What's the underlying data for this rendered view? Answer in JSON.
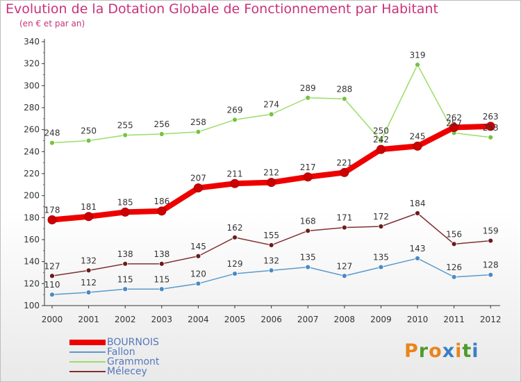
{
  "title": "Evolution de la Dotation Globale de Fonctionnement par Habitant",
  "subtitle": "(en € et par an)",
  "logo": {
    "text": "Proxiti",
    "letter_colors": [
      "#e8851c",
      "#4f9a2e",
      "#e8851c",
      "#3a7fc4",
      "#e8851c",
      "#4f9a2e",
      "#3a7fc4"
    ]
  },
  "chart_data": {
    "type": "line",
    "title": "Evolution de la Dotation Globale de Fonctionnement par Habitant",
    "subtitle": "(en € et par an)",
    "x": [
      "2000",
      "2001",
      "2002",
      "2003",
      "2004",
      "2005",
      "2006",
      "2007",
      "2008",
      "2009",
      "2010",
      "2011",
      "2012"
    ],
    "yticks": [
      "100",
      "120",
      "140",
      "160",
      "180",
      "200",
      "220",
      "240",
      "260",
      "280",
      "300",
      "320",
      "340"
    ],
    "ylim": [
      100,
      340
    ],
    "grid": false,
    "legend_position": "bottom-left",
    "series": [
      {
        "name": "BOURNOIS",
        "color": "#ee0000",
        "marker": "#cc0000",
        "emphasis": true,
        "values": [
          178,
          181,
          185,
          186,
          207,
          211,
          212,
          217,
          221,
          242,
          245,
          262,
          263
        ],
        "labels": [
          "178",
          "181",
          "185",
          "186",
          "207",
          "211",
          "212",
          "217",
          "221",
          "242",
          "245",
          "262",
          "263"
        ]
      },
      {
        "name": "Fallon",
        "color": "#5a9acb",
        "marker": "#4a8ac4",
        "emphasis": false,
        "values": [
          110,
          112,
          115,
          115,
          120,
          129,
          132,
          135,
          127,
          135,
          143,
          126,
          128
        ],
        "labels": [
          "110",
          "112",
          "115",
          "115",
          "120",
          "129",
          "132",
          "135",
          "127",
          "135",
          "143",
          "126",
          "128"
        ]
      },
      {
        "name": "Grammont",
        "color": "#99dd66",
        "marker": "#77c244",
        "emphasis": false,
        "values": [
          248,
          250,
          255,
          256,
          258,
          269,
          274,
          289,
          288,
          250,
          319,
          257,
          253
        ],
        "labels": [
          "248",
          "250",
          "255",
          "256",
          "258",
          "269",
          "274",
          "289",
          "288",
          "250",
          "319",
          "257",
          "253"
        ]
      },
      {
        "name": "Mélecey",
        "color": "#803030",
        "marker": "#6a1c1c",
        "emphasis": false,
        "values": [
          127,
          132,
          138,
          138,
          145,
          162,
          155,
          168,
          171,
          172,
          184,
          156,
          159
        ],
        "labels": [
          "127",
          "132",
          "138",
          "138",
          "145",
          "162",
          "155",
          "168",
          "171",
          "172",
          "184",
          "156",
          "159"
        ]
      }
    ]
  }
}
